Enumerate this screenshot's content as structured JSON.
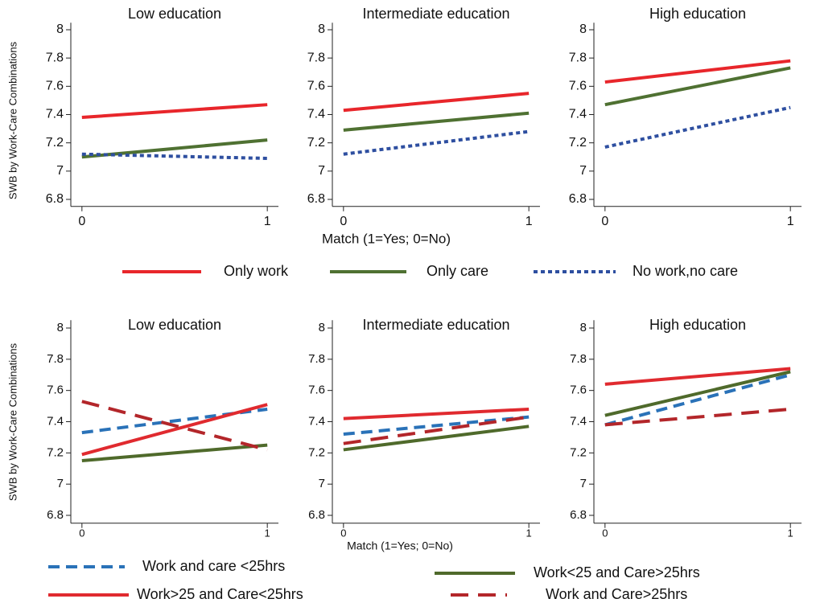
{
  "chart_data": [
    {
      "type": "line",
      "ylabel": "SWB by Work-Care Combinations",
      "xlabel": "Match (1=Yes; 0=No)",
      "titles": [
        "Low education",
        "Intermediate education",
        "High education"
      ],
      "x": [
        0,
        1
      ],
      "xlim": [
        -0.06,
        1.06
      ],
      "xticks": [
        0,
        1
      ],
      "ylim": [
        6.75,
        8.05
      ],
      "yticks": [
        6.8,
        7,
        7.2,
        7.4,
        7.6,
        7.8,
        8
      ],
      "series": [
        {
          "name": "Only work",
          "color": "#e8262b",
          "style": "solid",
          "values": [
            [
              7.38,
              7.47
            ],
            [
              7.43,
              7.55
            ],
            [
              7.63,
              7.78
            ]
          ]
        },
        {
          "name": "Only care",
          "color": "#4f7132",
          "style": "solid",
          "values": [
            [
              7.1,
              7.22
            ],
            [
              7.29,
              7.41
            ],
            [
              7.47,
              7.73
            ]
          ]
        },
        {
          "name": "No work,no care",
          "color": "#2e4fa0",
          "style": "dot",
          "values": [
            [
              7.12,
              7.09
            ],
            [
              7.12,
              7.28
            ],
            [
              7.17,
              7.45
            ]
          ]
        }
      ]
    },
    {
      "type": "line",
      "ylabel": "SWB by Work-Care Combinations",
      "xlabel": "Match (1=Yes; 0=No)",
      "titles": [
        "Low education",
        "Intermediate education",
        "High education"
      ],
      "x": [
        0,
        1
      ],
      "xlim": [
        -0.06,
        1.06
      ],
      "xticks": [
        0,
        1
      ],
      "ylim": [
        6.75,
        8.05
      ],
      "yticks": [
        6.8,
        7,
        7.2,
        7.4,
        7.6,
        7.8,
        8
      ],
      "series": [
        {
          "name": "Work and care <25hrs",
          "color": "#2a72b8",
          "style": "dash",
          "values": [
            [
              7.33,
              7.48
            ],
            [
              7.32,
              7.43
            ],
            [
              7.38,
              7.7
            ]
          ]
        },
        {
          "name": "Work<25 and Care>25hrs",
          "color": "#4f6a2b",
          "style": "solid",
          "values": [
            [
              7.15,
              7.25
            ],
            [
              7.22,
              7.37
            ],
            [
              7.44,
              7.72
            ]
          ]
        },
        {
          "name": "Work>25 and Care<25hrs",
          "color": "#e02a2f",
          "style": "solid",
          "values": [
            [
              7.19,
              7.51
            ],
            [
              7.42,
              7.48
            ],
            [
              7.64,
              7.74
            ]
          ]
        },
        {
          "name": "Work and Care>25hrs",
          "color": "#b3262a",
          "style": "longdash",
          "values": [
            [
              7.53,
              7.22
            ],
            [
              7.26,
              7.43
            ],
            [
              7.38,
              7.48
            ]
          ]
        }
      ]
    }
  ]
}
